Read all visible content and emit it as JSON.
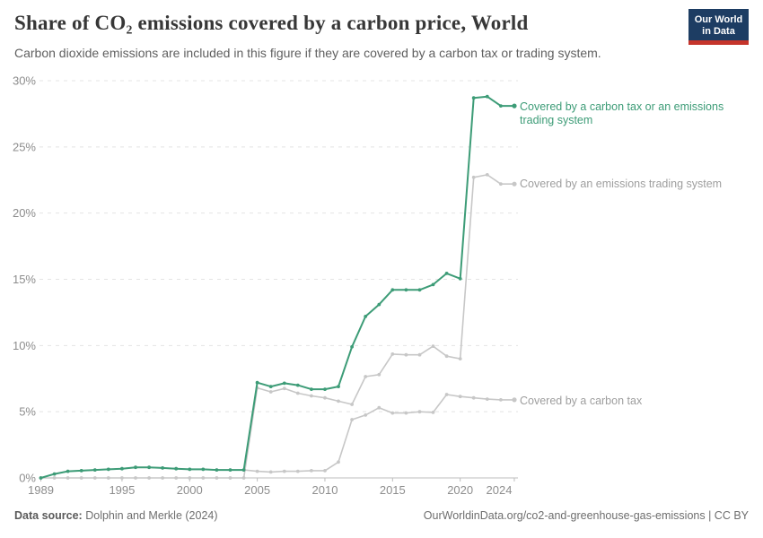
{
  "header": {
    "title": "Share of CO₂ emissions covered by a carbon price, World",
    "subtitle": "Carbon dioxide emissions are included in this figure if they are covered by a carbon tax or trading system."
  },
  "logo": {
    "line1": "Our World",
    "line2": "in Data",
    "bg_color": "#1d3d63",
    "accent_color": "#c5342b"
  },
  "chart_data": {
    "type": "line",
    "unit": "%",
    "grid": "horizontal-dashed",
    "legend_position": "right-of-line-ends",
    "ylim": [
      0,
      30
    ],
    "x": [
      1989,
      1990,
      1991,
      1992,
      1993,
      1994,
      1995,
      1996,
      1997,
      1998,
      1999,
      2000,
      2001,
      2002,
      2003,
      2004,
      2005,
      2006,
      2007,
      2008,
      2009,
      2010,
      2011,
      2012,
      2013,
      2014,
      2015,
      2016,
      2017,
      2018,
      2019,
      2020,
      2021,
      2022,
      2023,
      2024
    ],
    "series": [
      {
        "id": "total",
        "name": "Covered by a carbon tax or an emissions trading system",
        "label_lines": [
          "Covered by a carbon tax or an emissions",
          "trading system"
        ],
        "color": "#3d9c77",
        "values": [
          0,
          0.3,
          0.5,
          0.55,
          0.6,
          0.65,
          0.7,
          0.8,
          0.8,
          0.75,
          0.7,
          0.65,
          0.65,
          0.6,
          0.6,
          0.6,
          7.2,
          6.9,
          7.15,
          7.0,
          6.7,
          6.7,
          6.9,
          9.9,
          12.2,
          13.1,
          14.2,
          14.2,
          14.2,
          14.6,
          15.45,
          15.05,
          28.7,
          28.8,
          28.1,
          28.1
        ]
      },
      {
        "id": "ets",
        "name": "Covered by an emissions trading system",
        "color": "#c7c7c7",
        "values": [
          0,
          0,
          0,
          0,
          0,
          0,
          0,
          0,
          0,
          0,
          0,
          0,
          0,
          0,
          0,
          0,
          6.8,
          6.5,
          6.75,
          6.4,
          6.2,
          6.05,
          5.8,
          5.55,
          7.65,
          7.8,
          9.35,
          9.3,
          9.3,
          9.95,
          9.2,
          9.0,
          22.7,
          22.9,
          22.2,
          22.2
        ]
      },
      {
        "id": "tax",
        "name": "Covered by a carbon tax",
        "color": "#c7c7c7",
        "values": [
          0,
          0.3,
          0.5,
          0.55,
          0.6,
          0.65,
          0.7,
          0.8,
          0.8,
          0.75,
          0.7,
          0.65,
          0.65,
          0.6,
          0.6,
          0.6,
          0.5,
          0.45,
          0.5,
          0.5,
          0.55,
          0.55,
          1.2,
          4.4,
          4.75,
          5.3,
          4.9,
          4.9,
          5.0,
          4.95,
          6.3,
          6.15,
          6.05,
          5.95,
          5.9,
          5.9
        ]
      }
    ],
    "axis": {
      "y_ticks": [
        0,
        5,
        10,
        15,
        20,
        25,
        30
      ],
      "y_tick_labels": [
        "0%",
        "5%",
        "10%",
        "15%",
        "20%",
        "25%",
        "30%"
      ],
      "x_ticks": [
        1989,
        1995,
        2000,
        2005,
        2010,
        2015,
        2020,
        2024
      ]
    }
  },
  "footer": {
    "source_label": "Data source:",
    "source_value": "Dolphin and Merkle (2024)",
    "credit": "OurWorldinData.org/co2-and-greenhouse-gas-emissions | CC BY"
  }
}
